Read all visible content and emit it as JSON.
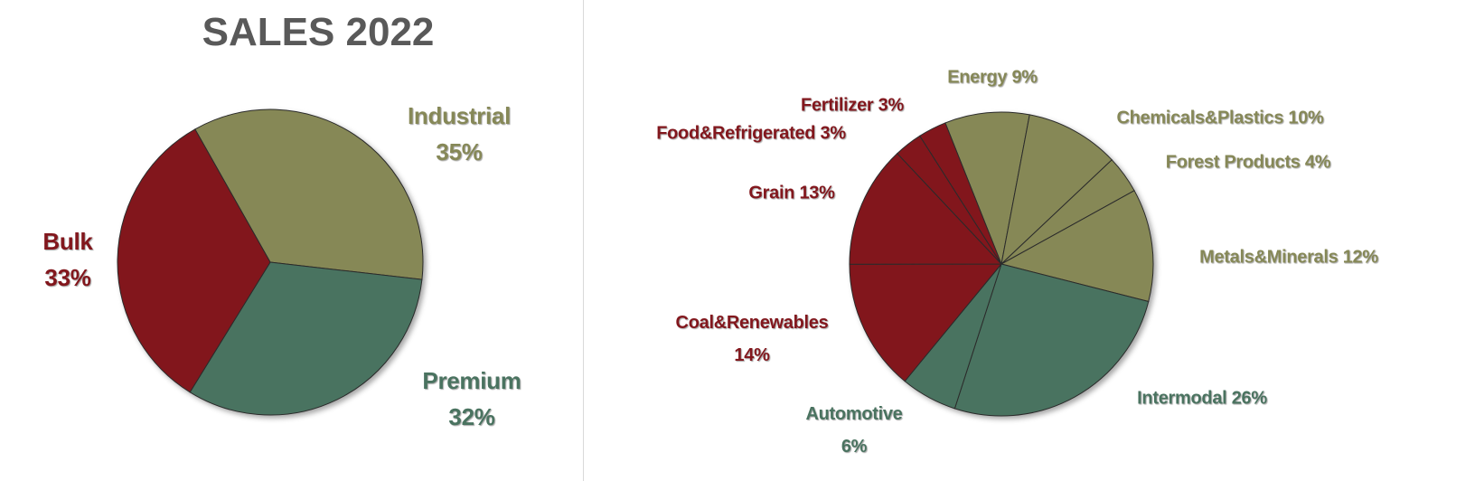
{
  "colors": {
    "red": "#82171d",
    "olive": "#868857",
    "green": "#4a7360",
    "title": "#595959"
  },
  "chart_data": [
    {
      "type": "pie",
      "title": "SALES 2022",
      "slices": [
        {
          "name": "Industrial",
          "pct": "35%",
          "value": 35,
          "group": "olive"
        },
        {
          "name": "Premium",
          "pct": "32%",
          "value": 32,
          "group": "green"
        },
        {
          "name": "Bulk",
          "pct": "33%",
          "value": 33,
          "group": "red"
        }
      ]
    },
    {
      "type": "pie",
      "title": "",
      "slices": [
        {
          "name": "Energy",
          "pct": "9%",
          "value": 9,
          "group": "olive"
        },
        {
          "name": "Chemicals&Plastics",
          "pct": "10%",
          "value": 10,
          "group": "olive"
        },
        {
          "name": "Forest Products",
          "pct": "4%",
          "value": 4,
          "group": "olive"
        },
        {
          "name": "Metals&Minerals",
          "pct": "12%",
          "value": 12,
          "group": "olive"
        },
        {
          "name": "Intermodal",
          "pct": "26%",
          "value": 26,
          "group": "green"
        },
        {
          "name": "Automotive",
          "pct": "6%",
          "value": 6,
          "group": "green"
        },
        {
          "name": "Coal&Renewables",
          "pct": "14%",
          "value": 14,
          "group": "red"
        },
        {
          "name": "Grain",
          "pct": "13%",
          "value": 13,
          "group": "red"
        },
        {
          "name": "Food&Refrigerated",
          "pct": "3%",
          "value": 3,
          "group": "red"
        },
        {
          "name": "Fertilizer",
          "pct": "3%",
          "value": 3,
          "group": "red"
        }
      ]
    }
  ]
}
